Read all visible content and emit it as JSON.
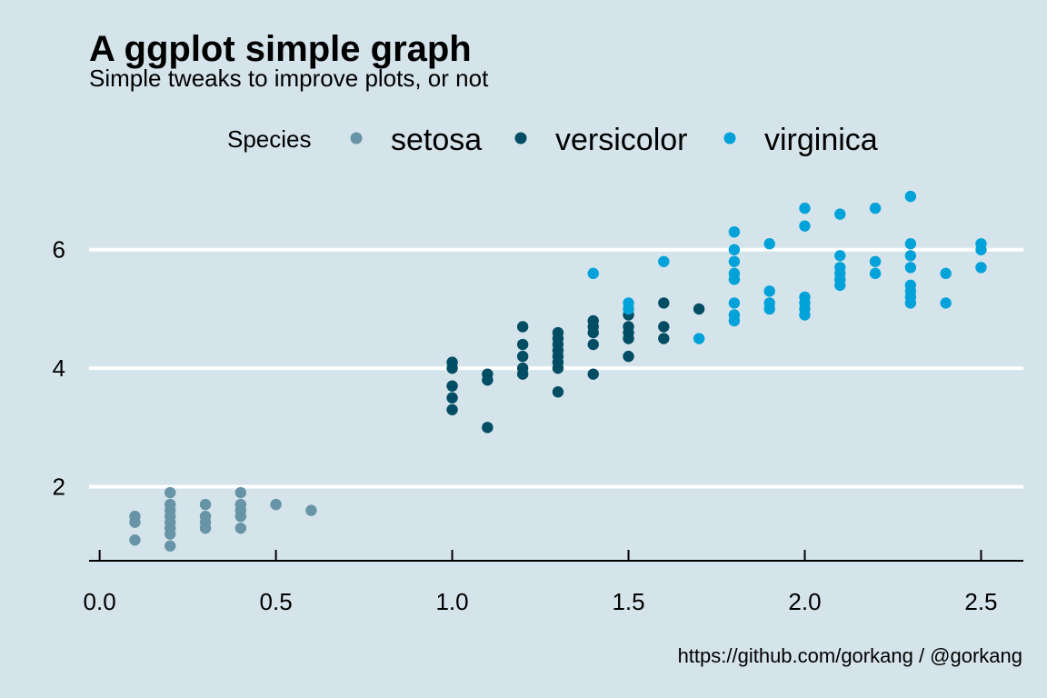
{
  "chart_data": {
    "type": "scatter",
    "title": "A ggplot simple graph",
    "subtitle": "Simple tweaks to improve plots, or not",
    "caption": "https://github.com/gorkang / @gorkang",
    "xlabel": "",
    "ylabel": "",
    "xlim": [
      -0.03,
      2.62
    ],
    "ylim": [
      0.75,
      7.3
    ],
    "x_ticks": [
      0.0,
      0.5,
      1.0,
      1.5,
      2.0,
      2.5
    ],
    "x_tick_labels": [
      "0.0",
      "0.5",
      "1.0",
      "1.5",
      "2.0",
      "2.5"
    ],
    "y_ticks": [
      2,
      4,
      6
    ],
    "y_tick_labels": [
      "2",
      "4",
      "6"
    ],
    "grid": "horizontal major lines only",
    "legend": {
      "title": "Species",
      "placement": "top",
      "entries": [
        "setosa",
        "versicolor",
        "virginica"
      ]
    },
    "series": [
      {
        "name": "setosa",
        "color": "#6794a7",
        "points": [
          [
            0.1,
            1.1
          ],
          [
            0.1,
            1.4
          ],
          [
            0.1,
            1.5
          ],
          [
            0.2,
            1.0
          ],
          [
            0.2,
            1.2
          ],
          [
            0.2,
            1.3
          ],
          [
            0.2,
            1.4
          ],
          [
            0.2,
            1.5
          ],
          [
            0.2,
            1.6
          ],
          [
            0.2,
            1.7
          ],
          [
            0.2,
            1.9
          ],
          [
            0.3,
            1.3
          ],
          [
            0.3,
            1.4
          ],
          [
            0.3,
            1.5
          ],
          [
            0.3,
            1.7
          ],
          [
            0.4,
            1.3
          ],
          [
            0.4,
            1.5
          ],
          [
            0.4,
            1.6
          ],
          [
            0.4,
            1.7
          ],
          [
            0.4,
            1.9
          ],
          [
            0.5,
            1.7
          ],
          [
            0.6,
            1.6
          ]
        ]
      },
      {
        "name": "versicolor",
        "color": "#014d64",
        "points": [
          [
            1.0,
            3.3
          ],
          [
            1.0,
            3.5
          ],
          [
            1.0,
            3.7
          ],
          [
            1.0,
            4.0
          ],
          [
            1.0,
            4.1
          ],
          [
            1.1,
            3.0
          ],
          [
            1.1,
            3.8
          ],
          [
            1.1,
            3.9
          ],
          [
            1.2,
            3.9
          ],
          [
            1.2,
            4.0
          ],
          [
            1.2,
            4.2
          ],
          [
            1.2,
            4.4
          ],
          [
            1.2,
            4.7
          ],
          [
            1.3,
            3.6
          ],
          [
            1.3,
            4.0
          ],
          [
            1.3,
            4.1
          ],
          [
            1.3,
            4.2
          ],
          [
            1.3,
            4.3
          ],
          [
            1.3,
            4.4
          ],
          [
            1.3,
            4.5
          ],
          [
            1.3,
            4.6
          ],
          [
            1.4,
            3.9
          ],
          [
            1.4,
            4.4
          ],
          [
            1.4,
            4.6
          ],
          [
            1.4,
            4.7
          ],
          [
            1.4,
            4.8
          ],
          [
            1.5,
            4.2
          ],
          [
            1.5,
            4.5
          ],
          [
            1.5,
            4.6
          ],
          [
            1.5,
            4.7
          ],
          [
            1.5,
            4.9
          ],
          [
            1.6,
            4.5
          ],
          [
            1.6,
            4.7
          ],
          [
            1.6,
            5.1
          ],
          [
            1.7,
            5.0
          ]
        ]
      },
      {
        "name": "virginica",
        "color": "#01a2d9",
        "points": [
          [
            1.4,
            5.6
          ],
          [
            1.5,
            5.0
          ],
          [
            1.5,
            5.1
          ],
          [
            1.6,
            5.8
          ],
          [
            1.7,
            4.5
          ],
          [
            1.8,
            4.8
          ],
          [
            1.8,
            4.9
          ],
          [
            1.8,
            5.1
          ],
          [
            1.8,
            5.5
          ],
          [
            1.8,
            5.6
          ],
          [
            1.8,
            5.8
          ],
          [
            1.8,
            6.0
          ],
          [
            1.8,
            6.3
          ],
          [
            1.9,
            5.0
          ],
          [
            1.9,
            5.1
          ],
          [
            1.9,
            5.3
          ],
          [
            1.9,
            6.1
          ],
          [
            2.0,
            4.9
          ],
          [
            2.0,
            5.0
          ],
          [
            2.0,
            5.1
          ],
          [
            2.0,
            5.2
          ],
          [
            2.0,
            6.4
          ],
          [
            2.0,
            6.7
          ],
          [
            2.1,
            5.4
          ],
          [
            2.1,
            5.5
          ],
          [
            2.1,
            5.6
          ],
          [
            2.1,
            5.7
          ],
          [
            2.1,
            5.9
          ],
          [
            2.1,
            6.6
          ],
          [
            2.2,
            5.6
          ],
          [
            2.2,
            5.8
          ],
          [
            2.2,
            6.7
          ],
          [
            2.3,
            5.1
          ],
          [
            2.3,
            5.2
          ],
          [
            2.3,
            5.3
          ],
          [
            2.3,
            5.4
          ],
          [
            2.3,
            5.7
          ],
          [
            2.3,
            5.9
          ],
          [
            2.3,
            6.1
          ],
          [
            2.3,
            6.9
          ],
          [
            2.4,
            5.1
          ],
          [
            2.4,
            5.6
          ],
          [
            2.5,
            5.7
          ],
          [
            2.5,
            6.0
          ],
          [
            2.5,
            6.1
          ]
        ]
      }
    ]
  }
}
